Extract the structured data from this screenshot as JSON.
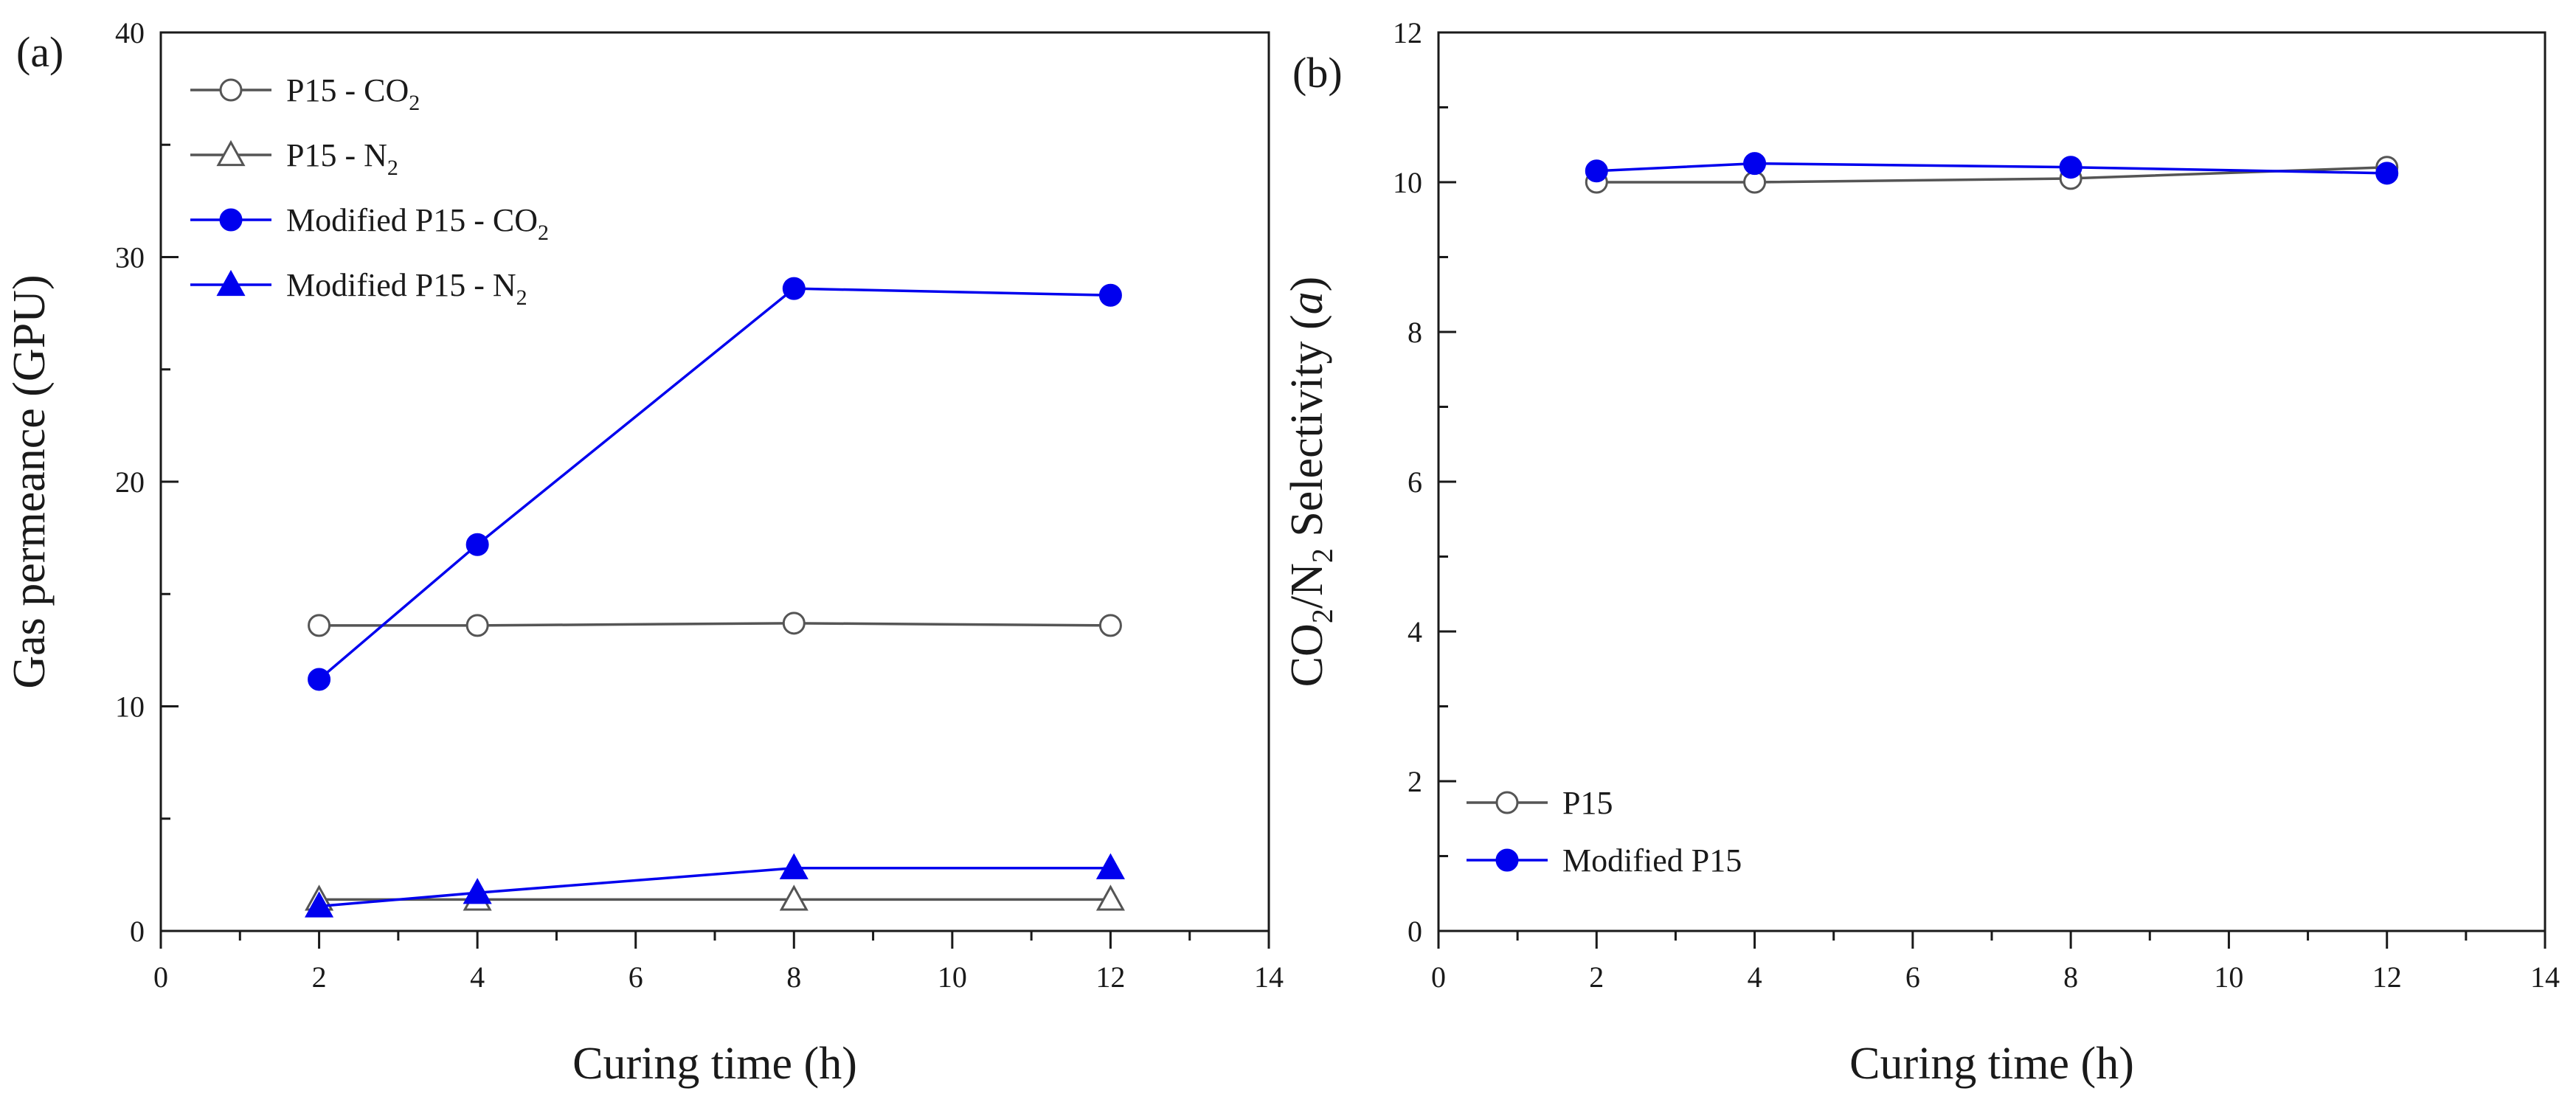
{
  "chart_data": [
    {
      "type": "line",
      "panel_label": "(a)",
      "xlabel": "Curing time (h)",
      "ylabel": "Gas permeance (GPU)",
      "xlim": [
        0,
        14
      ],
      "ylim": [
        0,
        40
      ],
      "x_major_ticks": [
        0,
        2,
        4,
        6,
        8,
        10,
        12,
        14
      ],
      "x_tick_labels": [
        "0",
        "2",
        "4",
        "6",
        "8",
        "10",
        "12",
        "14"
      ],
      "y_major_ticks": [
        0,
        10,
        20,
        30,
        40
      ],
      "y_tick_labels": [
        "0",
        "10",
        "20",
        "30",
        "40"
      ],
      "x": [
        2,
        4,
        8,
        12
      ],
      "legend_position": "top-left",
      "series": [
        {
          "name": "P15 - CO2",
          "label_main": "P15 - CO",
          "label_sub": "2",
          "color": "#555555",
          "marker": "circle-open",
          "values": [
            13.6,
            13.6,
            13.7,
            13.6
          ]
        },
        {
          "name": "P15 - N2",
          "label_main": "P15 - N",
          "label_sub": "2",
          "color": "#555555",
          "marker": "triangle-open",
          "values": [
            1.4,
            1.4,
            1.4,
            1.4
          ]
        },
        {
          "name": "Modified P15 - CO2",
          "label_main": "Modified P15 - CO",
          "label_sub": "2",
          "color": "#0000ee",
          "marker": "circle-filled",
          "values": [
            11.2,
            17.2,
            28.6,
            28.3
          ]
        },
        {
          "name": "Modified P15 - N2",
          "label_main": "Modified P15 - N",
          "label_sub": "2",
          "color": "#0000ee",
          "marker": "triangle-filled",
          "values": [
            1.1,
            1.7,
            2.8,
            2.8
          ]
        }
      ]
    },
    {
      "type": "line",
      "panel_label": "(b)",
      "xlabel": "Curing time (h)",
      "ylabel_parts": [
        "CO",
        "2",
        "/N",
        "2",
        " Selectivity (",
        "a",
        ")"
      ],
      "ylabel": "CO2/N2 Selectivity (a)",
      "xlim": [
        0,
        14
      ],
      "ylim": [
        0,
        12
      ],
      "x_major_ticks": [
        0,
        2,
        4,
        6,
        8,
        10,
        12,
        14
      ],
      "x_tick_labels": [
        "0",
        "2",
        "4",
        "6",
        "8",
        "10",
        "12",
        "14"
      ],
      "y_major_ticks": [
        0,
        2,
        4,
        6,
        8,
        10,
        12
      ],
      "y_tick_labels": [
        "0",
        "2",
        "4",
        "6",
        "8",
        "10",
        "12"
      ],
      "x": [
        2,
        4,
        8,
        12
      ],
      "legend_position": "bottom-left",
      "series": [
        {
          "name": "P15",
          "label_main": "P15",
          "label_sub": "",
          "color": "#555555",
          "marker": "circle-open",
          "values": [
            10.0,
            10.0,
            10.05,
            10.2
          ]
        },
        {
          "name": "Modified P15",
          "label_main": "Modified P15",
          "label_sub": "",
          "color": "#0000ee",
          "marker": "circle-filled",
          "values": [
            10.15,
            10.25,
            10.2,
            10.12
          ]
        }
      ]
    }
  ]
}
